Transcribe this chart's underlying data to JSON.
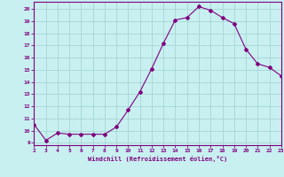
{
  "x": [
    2,
    3,
    4,
    5,
    6,
    7,
    8,
    9,
    10,
    11,
    12,
    13,
    14,
    15,
    16,
    17,
    18,
    19,
    20,
    21,
    22,
    23
  ],
  "y": [
    10.5,
    9.2,
    9.8,
    9.7,
    9.7,
    9.7,
    9.7,
    10.3,
    11.7,
    13.2,
    15.1,
    17.2,
    19.1,
    19.3,
    20.2,
    19.9,
    19.3,
    18.8,
    16.7,
    15.5,
    15.2,
    14.5
  ],
  "line_color": "#800080",
  "marker": "D",
  "marker_size": 2,
  "bg_color": "#c8f0f0",
  "grid_color": "#a0d0d0",
  "xlabel": "Windchill (Refroidissement éolien,°C)",
  "xlabel_color": "#800080",
  "ylabel_ticks": [
    9,
    10,
    11,
    12,
    13,
    14,
    15,
    16,
    17,
    18,
    19,
    20
  ],
  "ylim": [
    8.8,
    20.6
  ],
  "xlim": [
    2,
    23
  ],
  "xtick_labels": [
    "2",
    "3",
    "4",
    "5",
    "6",
    "7",
    "8",
    "9",
    "10",
    "11",
    "12",
    "13",
    "14",
    "15",
    "16",
    "17",
    "18",
    "19",
    "20",
    "21",
    "22",
    "23"
  ],
  "tick_color": "#800080",
  "spine_color": "#800080"
}
